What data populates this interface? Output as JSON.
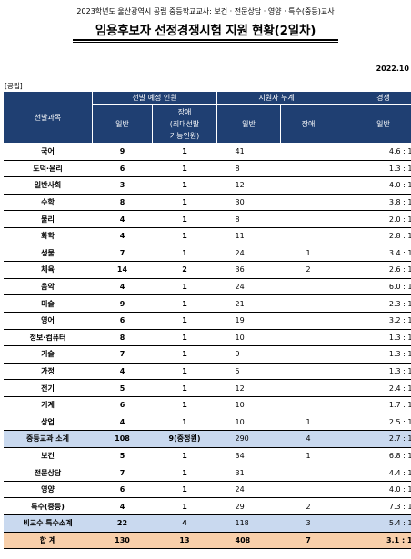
{
  "header": {
    "subtitle": "2023학년도 울산광역시 공립 중등학교교사: 보건 · 전문상담 · 영양 · 특수(중등)교사",
    "title": "임용후보자 선정경쟁시험 지원 현황(2일차)",
    "date": "2022.10",
    "tag": "[공립]"
  },
  "columns": {
    "subject": "선발과목",
    "planned_group": "선발 예정 인원",
    "applicants_group": "지원자 누계",
    "ratio_group": "경쟁",
    "general": "일반",
    "disabled_planned": "장애\n(최대선발\n가능인원)",
    "applicants_general": "일반",
    "applicants_disabled": "장애",
    "ratio_general": "일반"
  },
  "rows": [
    {
      "subject": "국어",
      "plan": "9",
      "plan_dis": "1",
      "app": "41",
      "app_dis": "",
      "ratio": "4.6 : 1"
    },
    {
      "subject": "도덕·윤리",
      "plan": "6",
      "plan_dis": "1",
      "app": "8",
      "app_dis": "",
      "ratio": "1.3 : 1"
    },
    {
      "subject": "일반사회",
      "plan": "3",
      "plan_dis": "1",
      "app": "12",
      "app_dis": "",
      "ratio": "4.0 : 1"
    },
    {
      "subject": "수학",
      "plan": "8",
      "plan_dis": "1",
      "app": "30",
      "app_dis": "",
      "ratio": "3.8 : 1"
    },
    {
      "subject": "물리",
      "plan": "4",
      "plan_dis": "1",
      "app": "8",
      "app_dis": "",
      "ratio": "2.0 : 1"
    },
    {
      "subject": "화학",
      "plan": "4",
      "plan_dis": "1",
      "app": "11",
      "app_dis": "",
      "ratio": "2.8 : 1"
    },
    {
      "subject": "생물",
      "plan": "7",
      "plan_dis": "1",
      "app": "24",
      "app_dis": "1",
      "ratio": "3.4 : 1"
    },
    {
      "subject": "체육",
      "plan": "14",
      "plan_dis": "2",
      "app": "36",
      "app_dis": "2",
      "ratio": "2.6 : 1"
    },
    {
      "subject": "음악",
      "plan": "4",
      "plan_dis": "1",
      "app": "24",
      "app_dis": "",
      "ratio": "6.0 : 1"
    },
    {
      "subject": "미술",
      "plan": "9",
      "plan_dis": "1",
      "app": "21",
      "app_dis": "",
      "ratio": "2.3 : 1"
    },
    {
      "subject": "영어",
      "plan": "6",
      "plan_dis": "1",
      "app": "19",
      "app_dis": "",
      "ratio": "3.2 : 1"
    },
    {
      "subject": "정보·컴퓨터",
      "plan": "8",
      "plan_dis": "1",
      "app": "10",
      "app_dis": "",
      "ratio": "1.3 : 1"
    },
    {
      "subject": "기술",
      "plan": "7",
      "plan_dis": "1",
      "app": "9",
      "app_dis": "",
      "ratio": "1.3 : 1"
    },
    {
      "subject": "가정",
      "plan": "4",
      "plan_dis": "1",
      "app": "5",
      "app_dis": "",
      "ratio": "1.3 : 1"
    },
    {
      "subject": "전기",
      "plan": "5",
      "plan_dis": "1",
      "app": "12",
      "app_dis": "",
      "ratio": "2.4 : 1"
    },
    {
      "subject": "기계",
      "plan": "6",
      "plan_dis": "1",
      "app": "10",
      "app_dis": "",
      "ratio": "1.7 : 1"
    },
    {
      "subject": "상업",
      "plan": "4",
      "plan_dis": "1",
      "app": "10",
      "app_dis": "1",
      "ratio": "2.5 : 1"
    },
    {
      "subject": "중등교과 소계",
      "plan": "108",
      "plan_dis": "9(중정원)",
      "app": "290",
      "app_dis": "4",
      "ratio": "2.7 : 1",
      "kind": "sub"
    },
    {
      "subject": "보건",
      "plan": "5",
      "plan_dis": "1",
      "app": "34",
      "app_dis": "1",
      "ratio": "6.8 : 1"
    },
    {
      "subject": "전문상담",
      "plan": "7",
      "plan_dis": "1",
      "app": "31",
      "app_dis": "",
      "ratio": "4.4 : 1"
    },
    {
      "subject": "영양",
      "plan": "6",
      "plan_dis": "1",
      "app": "24",
      "app_dis": "",
      "ratio": "4.0 : 1"
    },
    {
      "subject": "특수(중등)",
      "plan": "4",
      "plan_dis": "1",
      "app": "29",
      "app_dis": "2",
      "ratio": "7.3 : 1"
    },
    {
      "subject": "비교수 특수소계",
      "plan": "22",
      "plan_dis": "4",
      "app": "118",
      "app_dis": "3",
      "ratio": "5.4 : 1",
      "kind": "sub"
    },
    {
      "subject": "합  계",
      "plan": "130",
      "plan_dis": "13",
      "app": "408",
      "app_dis": "7",
      "ratio": "3.1 : 1",
      "kind": "tot"
    }
  ],
  "colors": {
    "header_bg": "#1f3f72",
    "subtotal_bg": "#c9d9ef",
    "total_bg": "#f8cfaa"
  }
}
